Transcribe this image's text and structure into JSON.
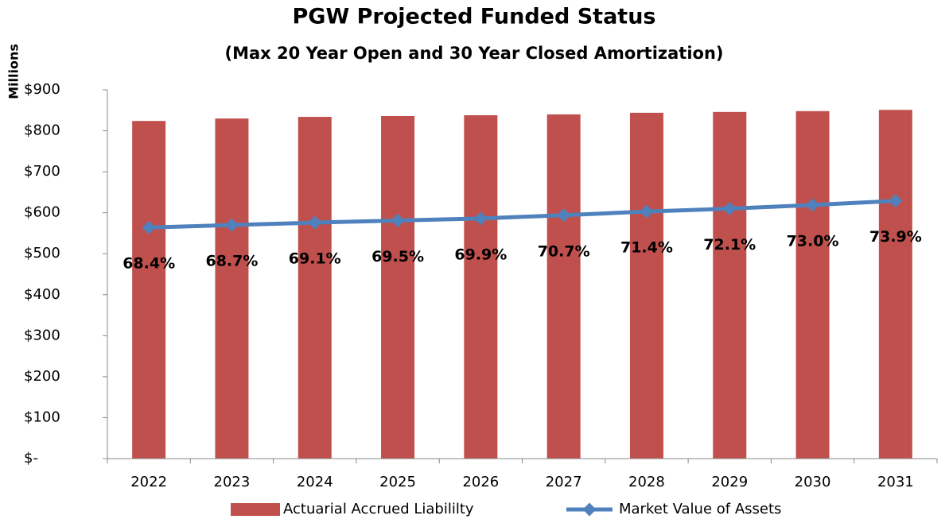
{
  "chart_data": {
    "type": "bar_line",
    "title": "PGW Projected Funded Status",
    "subtitle": "(Max 20 Year Open and 30 Year Closed Amortization)",
    "y_label": "Millions",
    "categories": [
      "2022",
      "2023",
      "2024",
      "2025",
      "2026",
      "2027",
      "2028",
      "2029",
      "2030",
      "2031"
    ],
    "series": [
      {
        "name": "Actuarial Accrued Liabililty",
        "type": "bar",
        "color": "#c0504d",
        "values": [
          824,
          830,
          834,
          836,
          838,
          840,
          844,
          846,
          848,
          851
        ]
      },
      {
        "name": "Market Value of Assets",
        "type": "line",
        "color": "#4f81bd",
        "values": [
          564,
          570,
          576,
          581,
          586,
          594,
          603,
          610,
          619,
          629
        ]
      }
    ],
    "annotations": [
      "68.4%",
      "68.7%",
      "69.1%",
      "69.5%",
      "69.9%",
      "70.7%",
      "71.4%",
      "72.1%",
      "73.0%",
      "73.9%"
    ],
    "ylim": [
      0,
      900
    ],
    "yticks": [
      {
        "value": 0,
        "label": "$-"
      },
      {
        "value": 100,
        "label": "$100"
      },
      {
        "value": 200,
        "label": "$200"
      },
      {
        "value": 300,
        "label": "$300"
      },
      {
        "value": 400,
        "label": "$400"
      },
      {
        "value": 500,
        "label": "$500"
      },
      {
        "value": 600,
        "label": "$600"
      },
      {
        "value": 700,
        "label": "$700"
      },
      {
        "value": 800,
        "label": "$800"
      },
      {
        "value": 900,
        "label": "$900"
      }
    ],
    "grid": false,
    "legend": "bottom"
  }
}
